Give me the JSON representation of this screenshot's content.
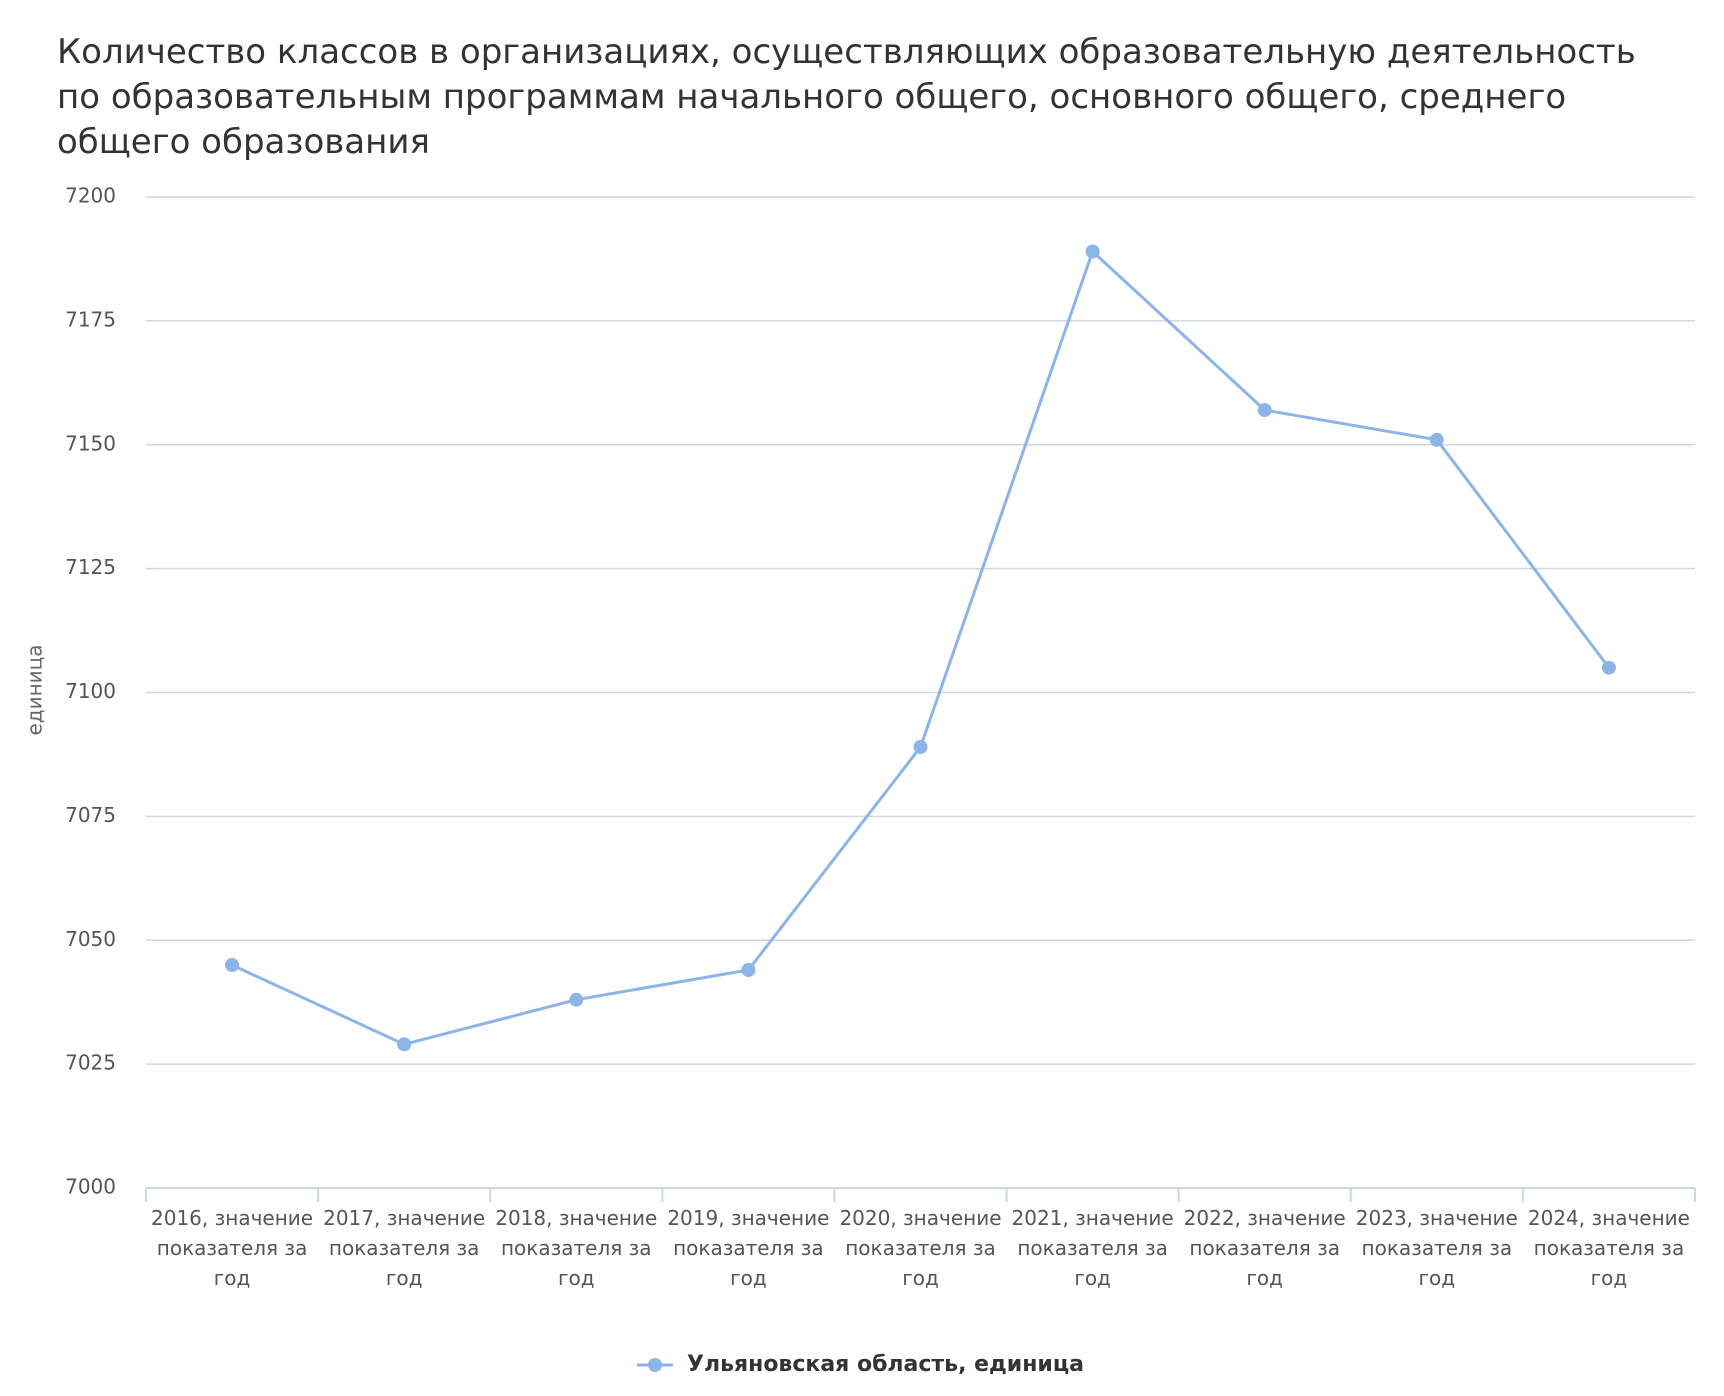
{
  "chart_data": {
    "type": "line",
    "title": "Количество классов в организациях, осуществляющих образовательную деятельность по образовательным программам начального общего, основного общего, среднего общего образования",
    "y_label": "единица",
    "categories": [
      "2016, значение показателя за год",
      "2017, значение показателя за год",
      "2018, значение показателя за год",
      "2019, значение показателя за год",
      "2020, значение показателя за год",
      "2021, значение показателя за год",
      "2022, значение показателя за год",
      "2023, значение показателя за год",
      "2024, значение показателя за год"
    ],
    "series": [
      {
        "name": "Ульяновская область, единица",
        "color": "#8db4e6",
        "values": [
          7045,
          7029,
          7038,
          7044,
          7089,
          7189,
          7157,
          7151,
          7105
        ]
      }
    ],
    "ylim": [
      7000,
      7200
    ],
    "yticks": [
      7000,
      7025,
      7050,
      7075,
      7100,
      7125,
      7150,
      7175,
      7200
    ],
    "grid": true,
    "legend": "bottom"
  }
}
